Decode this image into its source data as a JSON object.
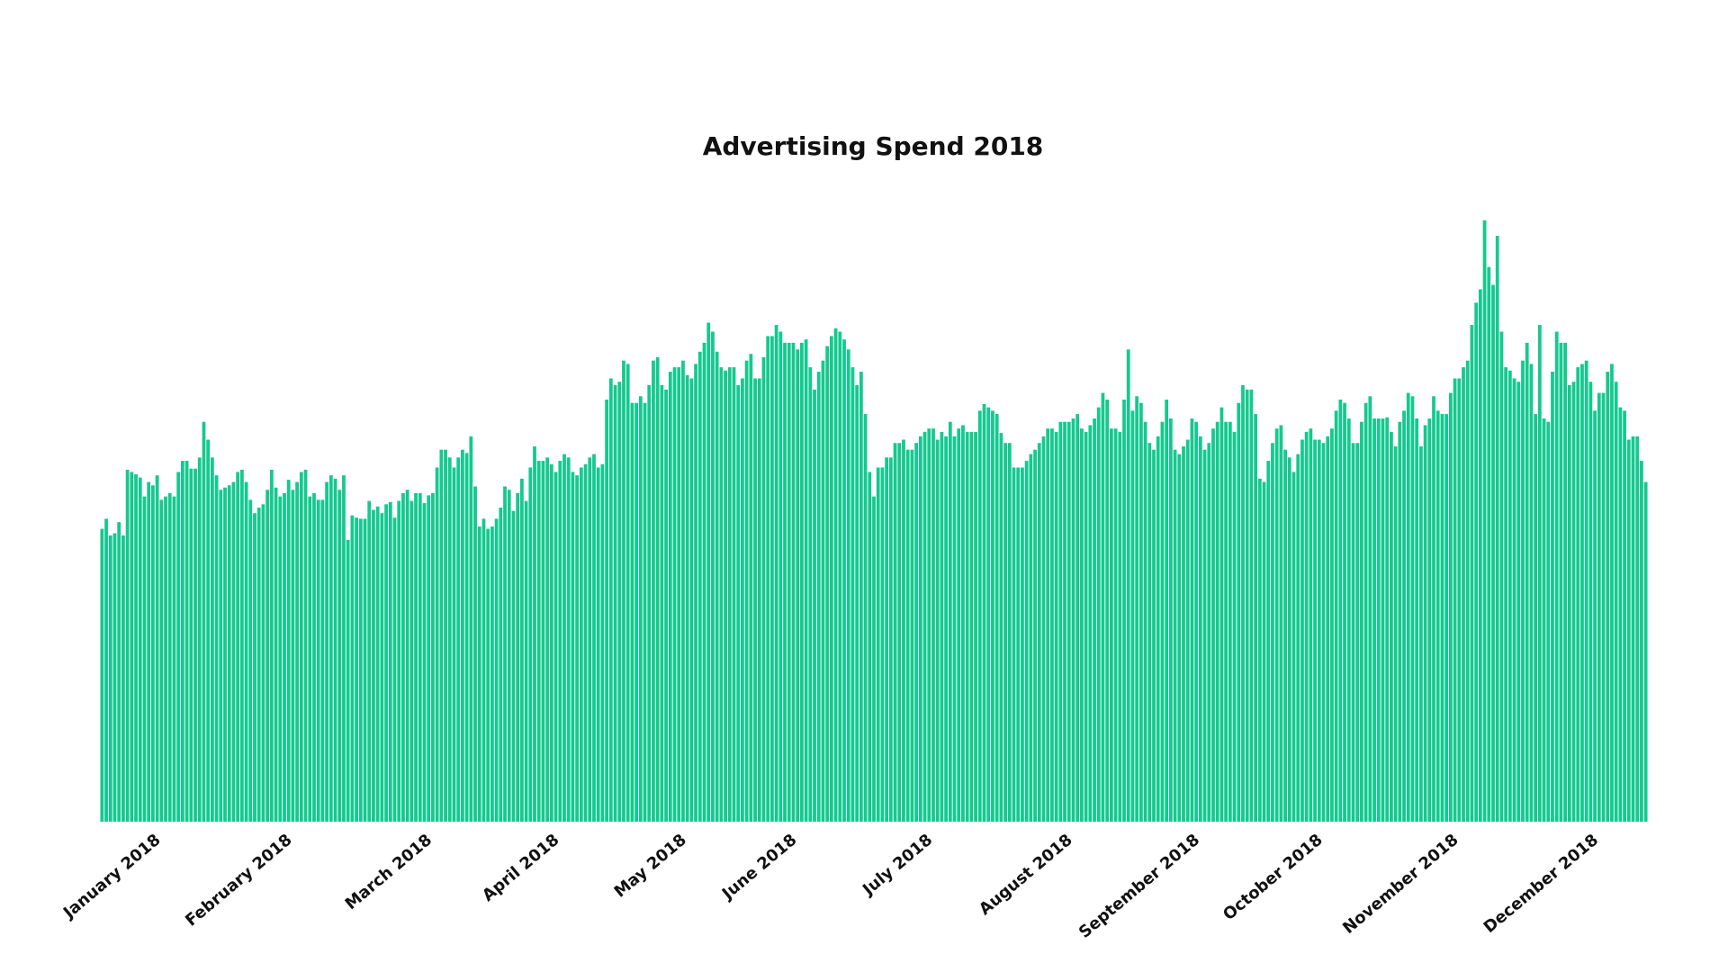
{
  "chart_data": {
    "type": "bar",
    "title": "Advertising Spend 2018",
    "color": "#14c98e",
    "ylim": [
      0,
      560
    ],
    "categories": [
      null,
      null,
      null,
      null,
      null,
      null,
      null,
      null,
      null,
      null,
      null,
      null,
      null,
      null,
      "January 2018",
      null,
      null,
      null,
      null,
      null,
      null,
      null,
      null,
      null,
      null,
      null,
      null,
      null,
      null,
      null,
      null,
      null,
      null,
      null,
      null,
      null,
      null,
      null,
      null,
      null,
      null,
      null,
      null,
      null,
      null,
      "February 2018",
      null,
      null,
      null,
      null,
      null,
      null,
      null,
      null,
      null,
      null,
      null,
      null,
      null,
      null,
      null,
      null,
      null,
      null,
      null,
      null,
      null,
      null,
      null,
      null,
      null,
      null,
      null,
      null,
      null,
      null,
      null,
      null,
      "March 2018",
      null,
      null,
      null,
      null,
      null,
      null,
      null,
      null,
      null,
      null,
      null,
      null,
      null,
      null,
      null,
      null,
      null,
      null,
      null,
      null,
      null,
      null,
      null,
      null,
      null,
      null,
      null,
      null,
      null,
      "April 2018",
      null,
      null,
      null,
      null,
      null,
      null,
      null,
      null,
      null,
      null,
      null,
      null,
      null,
      null,
      null,
      null,
      null,
      null,
      null,
      null,
      null,
      null,
      null,
      null,
      null,
      null,
      null,
      null,
      null,
      "May 2018",
      null,
      null,
      null,
      null,
      null,
      null,
      null,
      null,
      null,
      null,
      null,
      null,
      null,
      null,
      null,
      null,
      null,
      null,
      null,
      null,
      null,
      null,
      null,
      null,
      null,
      "June 2018",
      null,
      null,
      null,
      null,
      null,
      null,
      null,
      null,
      null,
      null,
      null,
      null,
      null,
      null,
      null,
      null,
      null,
      null,
      null,
      null,
      null,
      null,
      null,
      null,
      null,
      null,
      null,
      null,
      null,
      null,
      null,
      "July 2018",
      null,
      null,
      null,
      null,
      null,
      null,
      null,
      null,
      null,
      null,
      null,
      null,
      null,
      null,
      null,
      null,
      null,
      null,
      null,
      null,
      null,
      null,
      null,
      null,
      null,
      null,
      null,
      null,
      null,
      null,
      null,
      null,
      "August 2018",
      null,
      null,
      null,
      null,
      null,
      null,
      null,
      null,
      null,
      null,
      null,
      null,
      null,
      null,
      null,
      null,
      null,
      null,
      null,
      null,
      null,
      null,
      null,
      null,
      null,
      null,
      null,
      null,
      null,
      "September 2018",
      null,
      null,
      null,
      null,
      null,
      null,
      null,
      null,
      null,
      null,
      null,
      null,
      null,
      null,
      null,
      null,
      null,
      null,
      null,
      null,
      null,
      null,
      null,
      null,
      null,
      null,
      null,
      null,
      "October 2018",
      null,
      null,
      null,
      null,
      null,
      null,
      null,
      null,
      null,
      null,
      null,
      null,
      null,
      null,
      null,
      null,
      null,
      null,
      null,
      null,
      null,
      null,
      null,
      null,
      null,
      null,
      null,
      null,
      null,
      null,
      null,
      "November 2018",
      null,
      null,
      null,
      null,
      null,
      null,
      null,
      null,
      null,
      null,
      null,
      null,
      null,
      null,
      null,
      null,
      null,
      null,
      null,
      null,
      null,
      null,
      null,
      null,
      null,
      null,
      null,
      null,
      null,
      null,
      null,
      null,
      "December 2018",
      null,
      null,
      null,
      null,
      null,
      null,
      null,
      null,
      null,
      null,
      null
    ],
    "values": [
      263,
      272,
      257,
      259,
      269,
      257,
      316,
      314,
      312,
      309,
      292,
      305,
      302,
      311,
      289,
      292,
      295,
      292,
      314,
      324,
      324,
      317,
      317,
      327,
      359,
      343,
      327,
      311,
      298,
      300,
      302,
      305,
      314,
      316,
      305,
      289,
      277,
      282,
      285,
      298,
      316,
      300,
      292,
      295,
      307,
      298,
      305,
      314,
      316,
      292,
      295,
      289,
      289,
      305,
      311,
      308,
      298,
      311,
      253,
      275,
      273,
      272,
      272,
      288,
      280,
      283,
      277,
      285,
      287,
      273,
      288,
      295,
      298,
      288,
      295,
      295,
      286,
      293,
      295,
      318,
      334,
      334,
      327,
      318,
      327,
      334,
      331,
      346,
      301,
      265,
      272,
      263,
      265,
      272,
      282,
      301,
      298,
      279,
      295,
      308,
      288,
      318,
      337,
      324,
      324,
      327,
      321,
      314,
      324,
      330,
      327,
      314,
      311,
      318,
      321,
      327,
      330,
      318,
      321,
      379,
      398,
      392,
      395,
      414,
      411,
      376,
      376,
      382,
      376,
      392,
      414,
      417,
      392,
      388,
      404,
      408,
      408,
      414,
      401,
      398,
      411,
      422,
      430,
      448,
      440,
      422,
      408,
      405,
      408,
      408,
      392,
      398,
      414,
      420,
      398,
      398,
      417,
      436,
      436,
      446,
      440,
      430,
      430,
      430,
      424,
      430,
      433,
      408,
      388,
      404,
      414,
      427,
      436,
      443,
      440,
      433,
      424,
      408,
      392,
      404,
      366,
      314,
      292,
      318,
      318,
      327,
      327,
      340,
      340,
      343,
      334,
      334,
      340,
      346,
      350,
      353,
      353,
      343,
      350,
      346,
      359,
      346,
      353,
      356,
      350,
      350,
      350,
      369,
      375,
      372,
      369,
      366,
      349,
      340,
      340,
      318,
      318,
      318,
      324,
      330,
      334,
      340,
      346,
      353,
      353,
      350,
      359,
      359,
      359,
      362,
      366,
      353,
      350,
      356,
      362,
      372,
      385,
      379,
      353,
      353,
      350,
      379,
      424,
      369,
      382,
      376,
      359,
      340,
      334,
      346,
      359,
      379,
      362,
      334,
      330,
      337,
      343,
      362,
      359,
      346,
      334,
      340,
      353,
      359,
      372,
      359,
      359,
      350,
      376,
      392,
      388,
      388,
      366,
      308,
      305,
      324,
      340,
      353,
      356,
      334,
      327,
      314,
      330,
      343,
      350,
      353,
      343,
      343,
      340,
      346,
      353,
      369,
      379,
      376,
      362,
      340,
      340,
      359,
      376,
      382,
      362,
      362,
      362,
      363,
      350,
      337,
      359,
      369,
      385,
      382,
      362,
      337,
      356,
      362,
      382,
      369,
      366,
      366,
      385,
      398,
      398,
      408,
      414,
      446,
      466,
      478,
      540,
      498,
      482,
      526,
      440,
      408,
      405,
      398,
      395,
      414,
      430,
      411,
      366,
      446,
      362,
      359,
      404,
      440,
      430,
      430,
      392,
      395,
      408,
      411,
      414,
      395,
      369,
      385,
      385,
      404,
      411,
      395,
      372,
      369,
      343,
      346,
      346,
      324,
      305
    ]
  }
}
